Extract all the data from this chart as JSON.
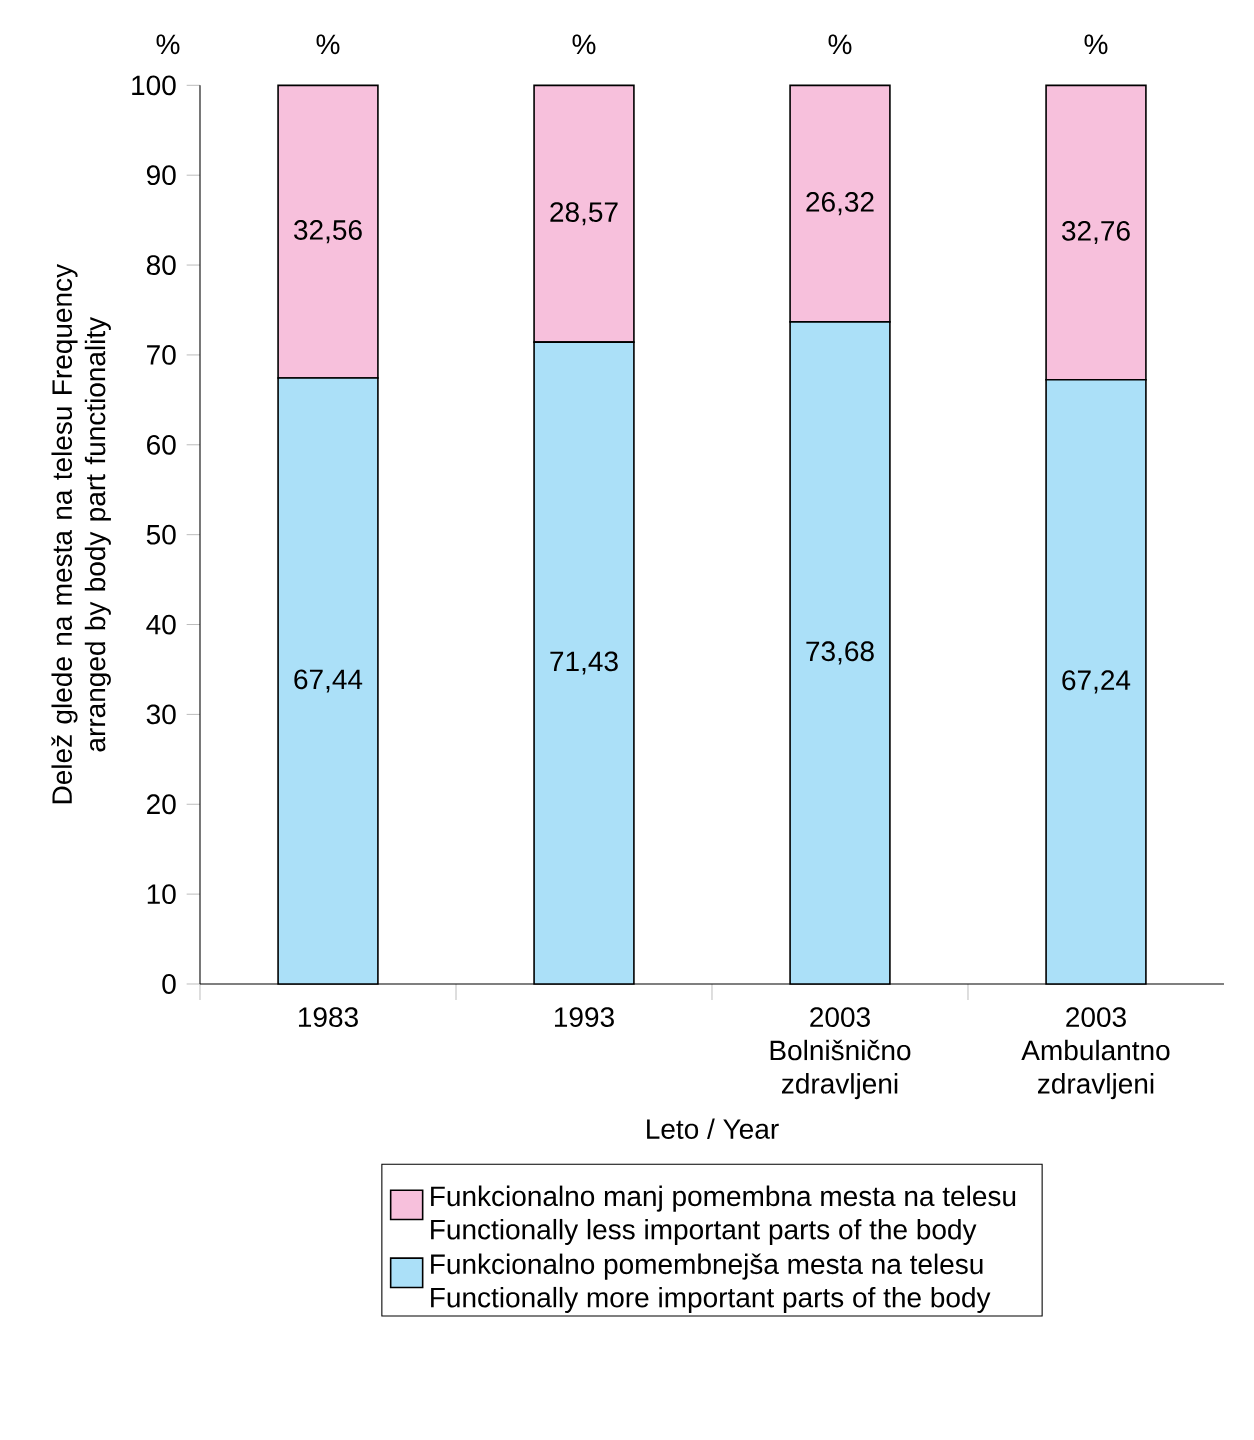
{
  "chart_data": {
    "type": "bar",
    "stacked": true,
    "legend": "bottom",
    "categories": [
      "1983",
      "1993",
      "2003 Bolnišnično zdravljeni",
      "2003 Ambulantno zdravljeni"
    ],
    "xlabel": "Leto / Year",
    "ylabel": "Delež glede na mesta na telesu Frequency arranged by body part functionality",
    "ylim": [
      0,
      100
    ],
    "yticks": [
      0,
      10,
      20,
      30,
      40,
      50,
      60,
      70,
      80,
      90,
      100
    ],
    "annotations": [
      "%",
      "%",
      "%",
      "%",
      "%"
    ],
    "series": [
      {
        "name": "Funkcionalno pomembnejša mesta na telesu Functionally more important parts of the body",
        "color": "#abe0f8",
        "values": [
          67.44,
          71.43,
          73.68,
          67.24
        ],
        "value_labels": [
          "67,44",
          "71,43",
          "73,68",
          "67,24"
        ]
      },
      {
        "name": "Funkcionalno manj pomembna mesta na telesu Functionally less important parts of the body",
        "color": "#f7c0dc",
        "values": [
          32.56,
          28.57,
          26.32,
          32.76
        ],
        "value_labels": [
          "32,56",
          "28,57",
          "26,32",
          "32,76"
        ]
      }
    ]
  }
}
